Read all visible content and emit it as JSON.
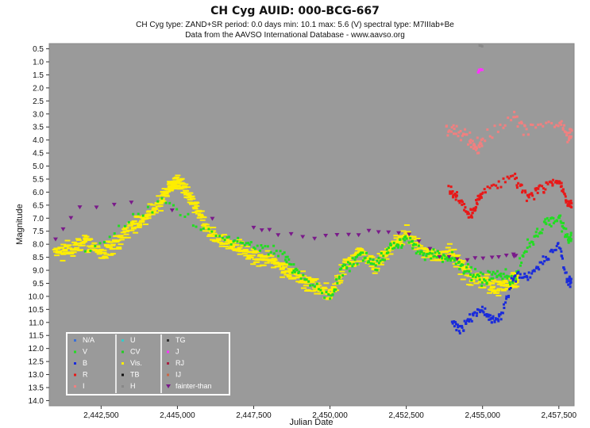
{
  "chart_data": {
    "type": "scatter",
    "title": "CH Cyg     AUID: 000-BCG-667",
    "subtitle": "CH Cyg   type: ZAND+SR   period: 0.0 days   min: 10.1   max: 5.6 (V)   spectral type: M7IIIab+Be",
    "source": "Data from the AAVSO International Database - www.aavso.org",
    "xlabel": "Julian Date",
    "ylabel": "Magnitude",
    "xlim": [
      2440800,
      2458000
    ],
    "ylim": [
      14.2,
      0.3
    ],
    "y_inverted": true,
    "x_ticks": [
      "2,442,500",
      "2,445,000",
      "2,447,500",
      "2,450,000",
      "2,452,500",
      "2,455,000",
      "2,457,500"
    ],
    "x_tick_values": [
      2442500,
      2445000,
      2447500,
      2450000,
      2452500,
      2455000,
      2457500
    ],
    "y_ticks": [
      "0.5",
      "1.0",
      "1.5",
      "2.0",
      "2.5",
      "3.0",
      "3.5",
      "4.0",
      "4.5",
      "5.0",
      "5.5",
      "6.0",
      "6.5",
      "7.0",
      "7.5",
      "8.0",
      "8.5",
      "9.0",
      "9.5",
      "10.0",
      "10.5",
      "11.0",
      "11.5",
      "12.0",
      "12.5",
      "13.0",
      "13.5",
      "14.0"
    ],
    "y_tick_values": [
      0.5,
      1.0,
      1.5,
      2.0,
      2.5,
      3.0,
      3.5,
      4.0,
      4.5,
      5.0,
      5.5,
      6.0,
      6.5,
      7.0,
      7.5,
      8.0,
      8.5,
      9.0,
      9.5,
      10.0,
      10.5,
      11.0,
      11.5,
      12.0,
      12.5,
      13.0,
      13.5,
      14.0
    ],
    "grid": false,
    "background_color": "#9a9a9a",
    "legend_position": "bottom-left",
    "legend": [
      {
        "label": "N/A",
        "color": "#3a6fd8",
        "marker": "dot"
      },
      {
        "label": "V",
        "color": "#22dd22",
        "marker": "dot"
      },
      {
        "label": "B",
        "color": "#1a2bdb",
        "marker": "dot"
      },
      {
        "label": "R",
        "color": "#e81818",
        "marker": "dot"
      },
      {
        "label": "I",
        "color": "#f08080",
        "marker": "dot"
      },
      {
        "label": "U",
        "color": "#33cccc",
        "marker": "dot"
      },
      {
        "label": "CV",
        "color": "#22cc22",
        "marker": "dot"
      },
      {
        "label": "Vis.",
        "color": "#ffee00",
        "marker": "dot"
      },
      {
        "label": "TB",
        "color": "#111111",
        "marker": "dot"
      },
      {
        "label": "H",
        "color": "#888888",
        "marker": "dot"
      },
      {
        "label": "TG",
        "color": "#333333",
        "marker": "dot"
      },
      {
        "label": "J",
        "color": "#ff33ff",
        "marker": "dot"
      },
      {
        "label": "RJ",
        "color": "#aa2244",
        "marker": "dot"
      },
      {
        "label": "IJ",
        "color": "#cc6644",
        "marker": "dot"
      },
      {
        "label": "fainter-than",
        "color": "#7a1a8a",
        "marker": "triangle-down"
      }
    ],
    "series": [
      {
        "name": "Vis.",
        "color": "#ffee00",
        "x": [
          2441000,
          2441500,
          2442000,
          2442500,
          2443000,
          2443500,
          2444000,
          2444500,
          2444800,
          2445000,
          2445300,
          2445600,
          2446000,
          2446500,
          2447000,
          2447500,
          2448000,
          2448500,
          2449000,
          2449500,
          2450000,
          2450500,
          2451000,
          2451500,
          2452000,
          2452500,
          2453000,
          2453500,
          2454000,
          2454500,
          2455000,
          2455500,
          2456000
        ],
        "y": [
          8.3,
          8.2,
          7.9,
          8.4,
          8.0,
          7.3,
          6.9,
          6.3,
          5.8,
          5.6,
          6.0,
          6.6,
          7.4,
          7.9,
          8.1,
          8.5,
          8.6,
          8.9,
          9.3,
          9.6,
          9.9,
          8.8,
          8.3,
          8.9,
          8.1,
          7.6,
          8.2,
          8.5,
          8.3,
          9.2,
          9.4,
          9.7,
          9.4
        ]
      },
      {
        "name": "V",
        "color": "#22dd22",
        "x": [
          2442000,
          2444500,
          2446500,
          2447500,
          2448500,
          2449000,
          2450000,
          2450500,
          2451000,
          2451500,
          2452000,
          2452500,
          2453000,
          2453500,
          2454000,
          2454500,
          2455000,
          2455500,
          2456000,
          2456500,
          2457000,
          2457500,
          2457800
        ],
        "y": [
          8.3,
          6.3,
          7.8,
          8.1,
          8.4,
          9.2,
          10.0,
          8.9,
          8.4,
          8.9,
          8.1,
          7.8,
          8.3,
          8.4,
          8.5,
          9.0,
          9.4,
          9.1,
          9.4,
          8.0,
          7.3,
          7.0,
          7.8
        ]
      },
      {
        "name": "B",
        "color": "#1a2bdb",
        "x": [
          2454000,
          2454300,
          2454600,
          2455000,
          2455300,
          2455600,
          2456000,
          2456500,
          2457000,
          2457500,
          2457800
        ],
        "y": [
          11.0,
          11.3,
          10.8,
          10.5,
          10.9,
          10.8,
          9.3,
          9.2,
          8.6,
          8.0,
          9.4
        ]
      },
      {
        "name": "R",
        "color": "#e81818",
        "x": [
          2453900,
          2454200,
          2454600,
          2454800,
          2455000,
          2456000,
          2456500,
          2457000,
          2457500,
          2457800
        ],
        "y": [
          5.9,
          6.3,
          6.9,
          6.5,
          6.0,
          5.4,
          6.2,
          5.8,
          5.5,
          6.5
        ]
      },
      {
        "name": "I",
        "color": "#f08080",
        "x": [
          2453800,
          2454200,
          2454600,
          2454800,
          2455000,
          2456000,
          2456500,
          2457500,
          2457800
        ],
        "y": [
          3.5,
          3.8,
          3.9,
          4.4,
          4.0,
          3.1,
          3.7,
          3.3,
          3.8
        ]
      },
      {
        "name": "J",
        "color": "#ff33ff",
        "x": [
          2454850,
          2454900
        ],
        "y": [
          1.4,
          1.3
        ]
      },
      {
        "name": "H",
        "color": "#888888",
        "x": [
          2454900
        ],
        "y": [
          0.4
        ]
      },
      {
        "name": "fainter-than",
        "color": "#7a1a8a",
        "x": [
          2441000,
          2441800,
          2443500,
          2447500,
          2448300,
          2449500,
          2450600,
          2451600,
          2452600,
          2453600,
          2454500,
          2455300,
          2456000
        ],
        "y": [
          7.8,
          6.6,
          6.4,
          7.3,
          7.6,
          7.7,
          7.6,
          7.5,
          7.6,
          8.5,
          8.6,
          8.5,
          8.4
        ]
      }
    ]
  }
}
